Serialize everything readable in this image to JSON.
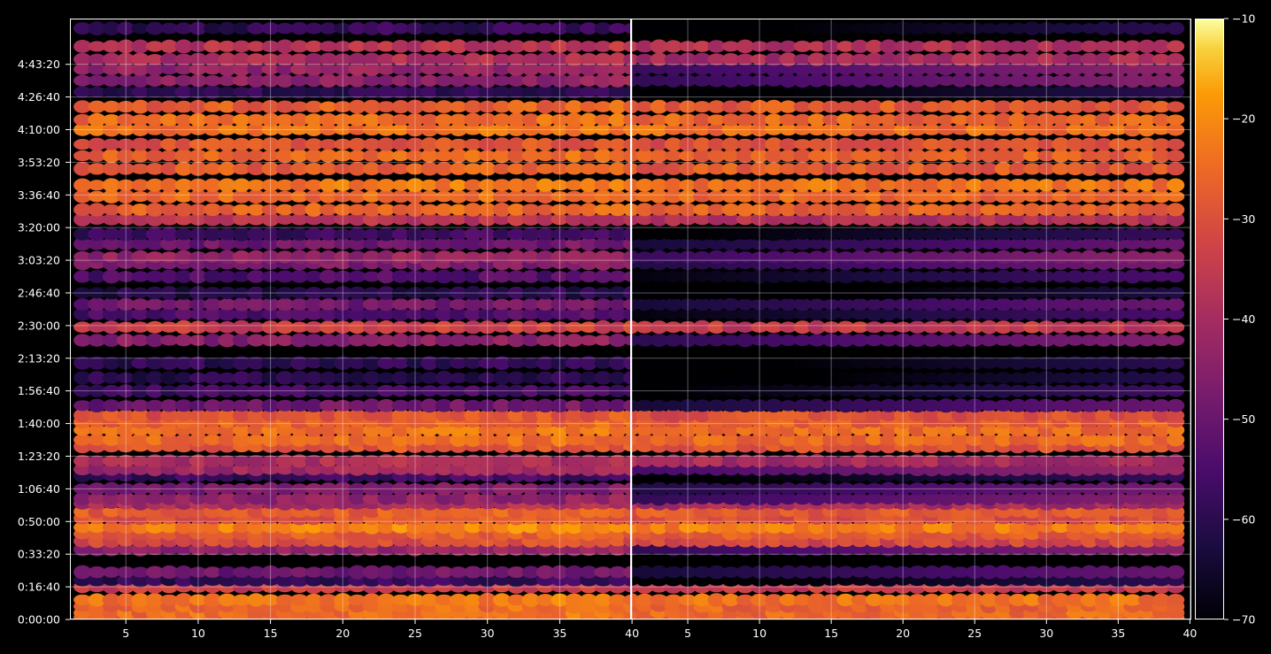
{
  "chart_data": {
    "type": "heatmap",
    "title": "",
    "xlabel": "",
    "ylabel": "",
    "colormap": "inferno",
    "background_color": "#000000",
    "grid": true,
    "grid_color": "#ffffff",
    "colorbar": {
      "placement": "right",
      "range": [
        -70,
        -10
      ],
      "tick_labels": [
        "−10",
        "−20",
        "−30",
        "−40",
        "−50",
        "−60",
        "−70"
      ],
      "ticks": [
        -10,
        -20,
        -30,
        -40,
        -50,
        -60,
        -70
      ]
    },
    "y_axis": {
      "unit": "time (h:mm:ss)",
      "range_seconds": [
        0,
        18400
      ],
      "tick_labels": [
        "0:00:00",
        "0:16:40",
        "0:33:20",
        "0:50:00",
        "1:06:40",
        "1:23:20",
        "1:40:00",
        "1:56:40",
        "2:13:20",
        "2:30:00",
        "2:46:40",
        "3:03:20",
        "3:20:00",
        "3:36:40",
        "3:53:20",
        "4:10:00",
        "4:26:40",
        "4:43:20"
      ],
      "tick_seconds": [
        0,
        1000,
        2000,
        3000,
        4000,
        5000,
        6000,
        7000,
        8000,
        9000,
        10000,
        11000,
        12000,
        13000,
        14000,
        15000,
        16000,
        17000
      ]
    },
    "panels": [
      {
        "name": "left",
        "x_range": [
          1,
          40
        ],
        "x_tick_labels": [
          "5",
          "10",
          "15",
          "20",
          "25",
          "30",
          "35",
          "40"
        ],
        "x_ticks": [
          5,
          10,
          15,
          20,
          25,
          30,
          35,
          40
        ],
        "channel_columns": [
          2,
          40
        ],
        "channel_profile": "flat"
      },
      {
        "name": "right",
        "x_range": [
          1,
          40
        ],
        "x_tick_labels": [
          "5",
          "10",
          "15",
          "20",
          "25",
          "30",
          "35",
          "40"
        ],
        "x_ticks": [
          5,
          10,
          15,
          20,
          25,
          30,
          35,
          40
        ],
        "channel_columns": [
          1,
          39
        ],
        "channel_profile": "low-at-left"
      }
    ],
    "bands_seconds_value_db": [
      [
        50,
        -28
      ],
      [
        200,
        -25
      ],
      [
        400,
        -26
      ],
      [
        600,
        -24
      ],
      [
        1000,
        -35
      ],
      [
        1200,
        -60
      ],
      [
        1450,
        -50
      ],
      [
        2150,
        -45
      ],
      [
        2400,
        -32
      ],
      [
        2620,
        -28
      ],
      [
        2820,
        -22
      ],
      [
        3100,
        -30
      ],
      [
        3300,
        -28
      ],
      [
        3550,
        -40
      ],
      [
        3700,
        -45
      ],
      [
        4000,
        -48
      ],
      [
        4400,
        -58
      ],
      [
        4600,
        -42
      ],
      [
        4850,
        -40
      ],
      [
        5300,
        -30
      ],
      [
        5500,
        -26
      ],
      [
        5800,
        -25
      ],
      [
        6050,
        -27
      ],
      [
        6250,
        -30
      ],
      [
        6550,
        -50
      ],
      [
        7000,
        -57
      ],
      [
        7400,
        -61
      ],
      [
        7850,
        -60
      ],
      [
        8550,
        -46
      ],
      [
        8950,
        -35
      ],
      [
        9350,
        -55
      ],
      [
        9650,
        -50
      ],
      [
        10000,
        -62
      ],
      [
        10500,
        -55
      ],
      [
        10900,
        -48
      ],
      [
        11100,
        -44
      ],
      [
        11500,
        -50
      ],
      [
        11800,
        -58
      ],
      [
        12250,
        -38
      ],
      [
        12550,
        -27
      ],
      [
        12950,
        -26
      ],
      [
        13300,
        -24
      ],
      [
        13800,
        -28
      ],
      [
        14200,
        -27
      ],
      [
        14550,
        -30
      ],
      [
        15000,
        -25
      ],
      [
        15300,
        -26
      ],
      [
        15700,
        -28
      ],
      [
        16150,
        -60
      ],
      [
        16500,
        -45
      ],
      [
        16850,
        -44
      ],
      [
        17150,
        -40
      ],
      [
        17550,
        -38
      ],
      [
        18100,
        -60
      ]
    ]
  }
}
